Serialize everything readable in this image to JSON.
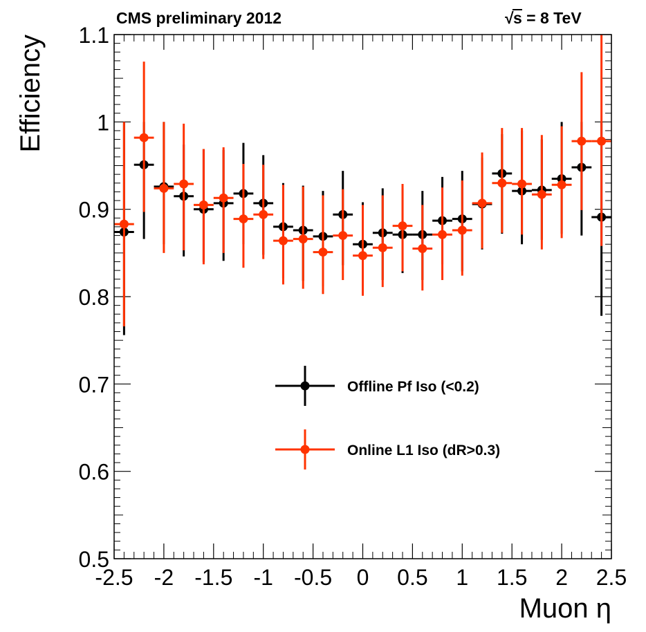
{
  "header": {
    "left": "CMS preliminary 2012",
    "sqrt_symbol": "√",
    "right": "s = 8 TeV"
  },
  "chart_data": {
    "type": "scatter",
    "title": "",
    "xlabel": "Muon η",
    "ylabel": "Efficiency",
    "xlim": [
      -2.5,
      2.5
    ],
    "ylim": [
      0.5,
      1.1
    ],
    "xticks": [
      "-2.5",
      "-2",
      "-1.5",
      "-1",
      "-0.5",
      "0",
      "0.5",
      "1",
      "1.5",
      "2",
      "2.5"
    ],
    "yticks": [
      "0.5",
      "0.6",
      "0.7",
      "0.8",
      "0.9",
      "1",
      "1.1"
    ],
    "x_bin_half_width": 0.1,
    "legend_position": "lower-right",
    "series": [
      {
        "name": "Offline Pf Iso (<0.2)",
        "color": "#000000",
        "marker": "filled-circle",
        "x": [
          -2.4,
          -2.2,
          -2.0,
          -1.8,
          -1.6,
          -1.4,
          -1.2,
          -1.0,
          -0.8,
          -0.6,
          -0.4,
          -0.2,
          0.0,
          0.2,
          0.4,
          0.6,
          0.8,
          1.0,
          1.2,
          1.4,
          1.6,
          1.8,
          2.0,
          2.2,
          2.4
        ],
        "y": [
          0.874,
          0.951,
          0.926,
          0.915,
          0.9,
          0.907,
          0.918,
          0.907,
          0.88,
          0.876,
          0.869,
          0.894,
          0.86,
          0.873,
          0.871,
          0.871,
          0.887,
          0.889,
          0.906,
          0.941,
          0.921,
          0.922,
          0.935,
          0.948,
          0.891
        ],
        "err_up": [
          0.126,
          0.049,
          0.074,
          0.059,
          0.069,
          0.061,
          0.058,
          0.055,
          0.05,
          0.051,
          0.052,
          0.05,
          0.048,
          0.051,
          0.053,
          0.05,
          0.05,
          0.055,
          0.053,
          0.045,
          0.069,
          0.058,
          0.065,
          0.052,
          0.109
        ],
        "err_down": [
          0.118,
          0.085,
          0.066,
          0.069,
          0.06,
          0.066,
          0.058,
          0.059,
          0.059,
          0.058,
          0.057,
          0.058,
          0.054,
          0.054,
          0.044,
          0.052,
          0.05,
          0.06,
          0.052,
          0.069,
          0.061,
          0.057,
          0.063,
          0.078,
          0.113
        ]
      },
      {
        "name": "Online L1 Iso (dR>0.3)",
        "color": "#ff3300",
        "marker": "filled-circle",
        "x": [
          -2.4,
          -2.2,
          -2.0,
          -1.8,
          -1.6,
          -1.4,
          -1.2,
          -1.0,
          -0.8,
          -0.6,
          -0.4,
          -0.2,
          0.0,
          0.2,
          0.4,
          0.6,
          0.8,
          1.0,
          1.2,
          1.4,
          1.6,
          1.8,
          2.0,
          2.2,
          2.4
        ],
        "y": [
          0.883,
          0.982,
          0.924,
          0.929,
          0.905,
          0.913,
          0.889,
          0.894,
          0.864,
          0.866,
          0.851,
          0.87,
          0.847,
          0.856,
          0.881,
          0.855,
          0.871,
          0.876,
          0.907,
          0.93,
          0.929,
          0.917,
          0.928,
          0.978,
          0.978
        ],
        "err_up": [
          0.117,
          0.087,
          0.076,
          0.069,
          0.064,
          0.058,
          0.063,
          0.057,
          0.064,
          0.06,
          0.065,
          0.053,
          0.058,
          0.06,
          0.048,
          0.05,
          0.054,
          0.057,
          0.058,
          0.063,
          0.064,
          0.068,
          0.067,
          0.079,
          0.122
        ],
        "err_down": [
          0.117,
          0.085,
          0.074,
          0.076,
          0.068,
          0.063,
          0.056,
          0.051,
          0.05,
          0.057,
          0.048,
          0.051,
          0.046,
          0.045,
          0.052,
          0.048,
          0.052,
          0.052,
          0.052,
          0.057,
          0.058,
          0.063,
          0.061,
          0.079,
          0.12
        ]
      }
    ]
  }
}
